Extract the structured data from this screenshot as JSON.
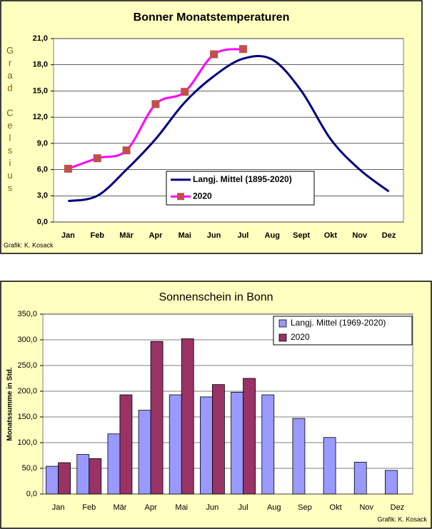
{
  "chart_data": [
    {
      "type": "line",
      "title": "Bonner Monatstemperaturen",
      "y_label": "Grad Celsius",
      "note": "Grafik: K. Kosack",
      "categories": [
        "Jan",
        "Feb",
        "Mär",
        "Apr",
        "Mai",
        "Jun",
        "Jul",
        "Aug",
        "Sept",
        "Okt",
        "Nov",
        "Dez"
      ],
      "series": [
        {
          "name": "Langj. Mittel (1895-2020)",
          "color": "#000080",
          "values": [
            2.4,
            3.0,
            6.0,
            9.5,
            13.7,
            16.7,
            18.7,
            18.6,
            15.0,
            9.5,
            6.0,
            3.5
          ]
        },
        {
          "name": "2020",
          "color": "#ff00ff",
          "marker_color": "#c0504d",
          "values": [
            6.1,
            7.3,
            8.2,
            13.5,
            14.9,
            19.2,
            19.8,
            null,
            null,
            null,
            null,
            null
          ]
        }
      ],
      "ylim": [
        0,
        21
      ],
      "yticks": [
        {
          "value": 0,
          "label": "0,0"
        },
        {
          "value": 3,
          "label": "3,0"
        },
        {
          "value": 6,
          "label": "6,0"
        },
        {
          "value": 9,
          "label": "9,0"
        },
        {
          "value": 12,
          "label": "12,0"
        },
        {
          "value": 15,
          "label": "15,0"
        },
        {
          "value": 18,
          "label": "18,0"
        },
        {
          "value": 21,
          "label": "21,0"
        }
      ],
      "grid": true
    },
    {
      "type": "bar",
      "title": "Sonnenschein in Bonn",
      "y_label": "Monatssumme in Std.",
      "note": "Grafik: K. Kosack",
      "categories": [
        "Jan",
        "Feb",
        "Mär",
        "Apr",
        "Mai",
        "Jun",
        "Jul",
        "Aug",
        "Sep",
        "Okt",
        "Nov",
        "Dez"
      ],
      "series": [
        {
          "name": "Langj. Mittel (1969-2020)",
          "color": "#9999ff",
          "values": [
            54,
            77,
            117,
            163,
            193,
            189,
            198,
            193,
            147,
            110,
            62,
            46
          ]
        },
        {
          "name": "2020",
          "color": "#993366",
          "values": [
            61,
            69,
            193,
            297,
            302,
            213,
            225,
            null,
            null,
            null,
            null,
            null
          ]
        }
      ],
      "ylim": [
        0,
        350
      ],
      "yticks": [
        {
          "value": 0,
          "label": "0,0"
        },
        {
          "value": 50,
          "label": "50,0"
        },
        {
          "value": 100,
          "label": "100,0"
        },
        {
          "value": 150,
          "label": "150,0"
        },
        {
          "value": 200,
          "label": "200,0"
        },
        {
          "value": 250,
          "label": "250,0"
        },
        {
          "value": 300,
          "label": "300,0"
        },
        {
          "value": 350,
          "label": "350,0"
        }
      ],
      "grid": true
    }
  ]
}
